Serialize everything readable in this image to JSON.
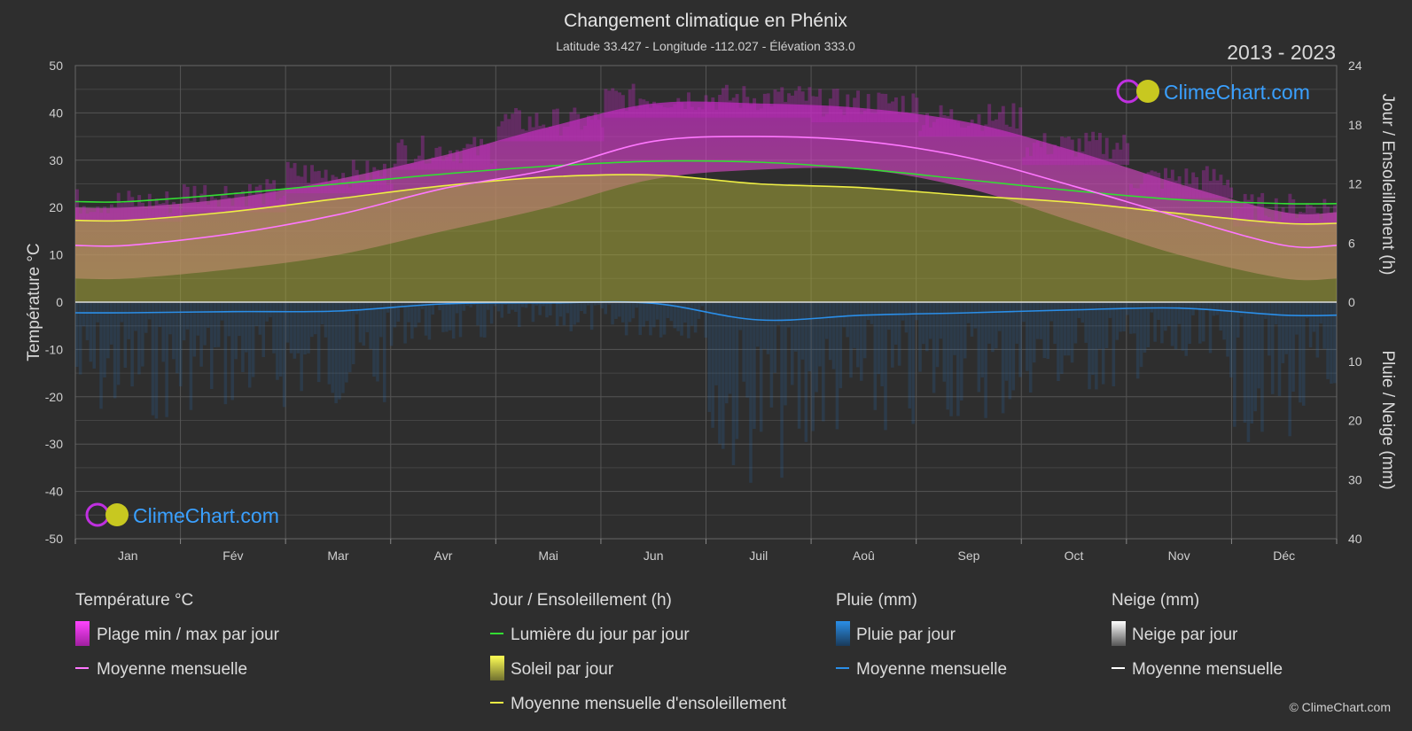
{
  "chart_data": {
    "type": "area",
    "title": "Changement climatique en Phénix",
    "subtitle": "Latitude 33.427 - Longitude -112.027 - Élévation 333.0",
    "period": "2013 - 2023",
    "brand": "ClimeChart.com",
    "copyright": "© ClimeChart.com",
    "y_left_label": "Température °C",
    "y_right_top_label": "Jour / Ensoleillement (h)",
    "y_right_bottom_label": "Pluie / Neige (mm)",
    "y_left_range": [
      -50,
      50
    ],
    "y_left_ticks": [
      "50",
      "40",
      "30",
      "20",
      "10",
      "0",
      "-10",
      "-20",
      "-30",
      "-40",
      "-50"
    ],
    "y_right_top_range": [
      0,
      24
    ],
    "y_right_top_ticks": [
      "24",
      "18",
      "12",
      "6",
      "0"
    ],
    "y_right_bottom_range": [
      0,
      40
    ],
    "y_right_bottom_ticks": [
      "10",
      "20",
      "30",
      "40"
    ],
    "months": [
      "Jan",
      "Fév",
      "Mar",
      "Avr",
      "Mai",
      "Jun",
      "Juil",
      "Aoû",
      "Sep",
      "Oct",
      "Nov",
      "Déc"
    ],
    "grid": true,
    "series": {
      "temp_monthly_mean": [
        12.0,
        14.5,
        18.5,
        24.0,
        28.0,
        34.0,
        35.0,
        34.0,
        30.5,
        24.5,
        18.0,
        12.0
      ],
      "temp_daily_max": [
        20.0,
        22.0,
        26.0,
        31.0,
        37.0,
        42.0,
        42.0,
        41.0,
        38.0,
        32.0,
        25.0,
        19.0
      ],
      "temp_daily_min": [
        5.0,
        7.0,
        10.0,
        15.0,
        20.0,
        26.0,
        28.0,
        28.0,
        24.0,
        17.0,
        10.0,
        5.0
      ],
      "daylight_hours": [
        10.2,
        11.0,
        12.0,
        13.0,
        13.8,
        14.3,
        14.2,
        13.5,
        12.4,
        11.3,
        10.4,
        10.0
      ],
      "sunshine_monthly_mean_hours": [
        8.3,
        9.2,
        10.5,
        11.8,
        12.7,
        12.9,
        12.0,
        11.6,
        10.8,
        10.1,
        9.0,
        8.0
      ],
      "rain_monthly_mean_mm": [
        1.8,
        1.6,
        1.5,
        0.3,
        0.1,
        0.2,
        3.0,
        2.2,
        1.8,
        1.3,
        1.0,
        2.2
      ],
      "snow_monthly_mean_mm": [
        0,
        0,
        0,
        0,
        0,
        0,
        0,
        0,
        0,
        0,
        0,
        0
      ]
    }
  },
  "legend": {
    "temperature": {
      "title": "Température °C",
      "range_label": "Plage min / max par jour",
      "mean_label": "Moyenne mensuelle"
    },
    "sun": {
      "title": "Jour / Ensoleillement (h)",
      "daylight_label": "Lumière du jour par jour",
      "sunshine_label": "Soleil par jour",
      "sunshine_mean_label": "Moyenne mensuelle d'ensoleillement"
    },
    "rain": {
      "title": "Pluie (mm)",
      "daily_label": "Pluie par jour",
      "mean_label": "Moyenne mensuelle"
    },
    "snow": {
      "title": "Neige (mm)",
      "daily_label": "Neige par jour",
      "mean_label": "Moyenne mensuelle"
    }
  },
  "colors": {
    "background": "#2e2e2e",
    "temp_range": "#d42ad4",
    "temp_mean": "#ff77ff",
    "daylight": "#33dd33",
    "sunshine_fill": "#b5b53a",
    "sunshine_mean": "#eeee44",
    "rain": "#2a8ee8",
    "snow": "#ffffff",
    "brand": "#3aa0ff"
  }
}
